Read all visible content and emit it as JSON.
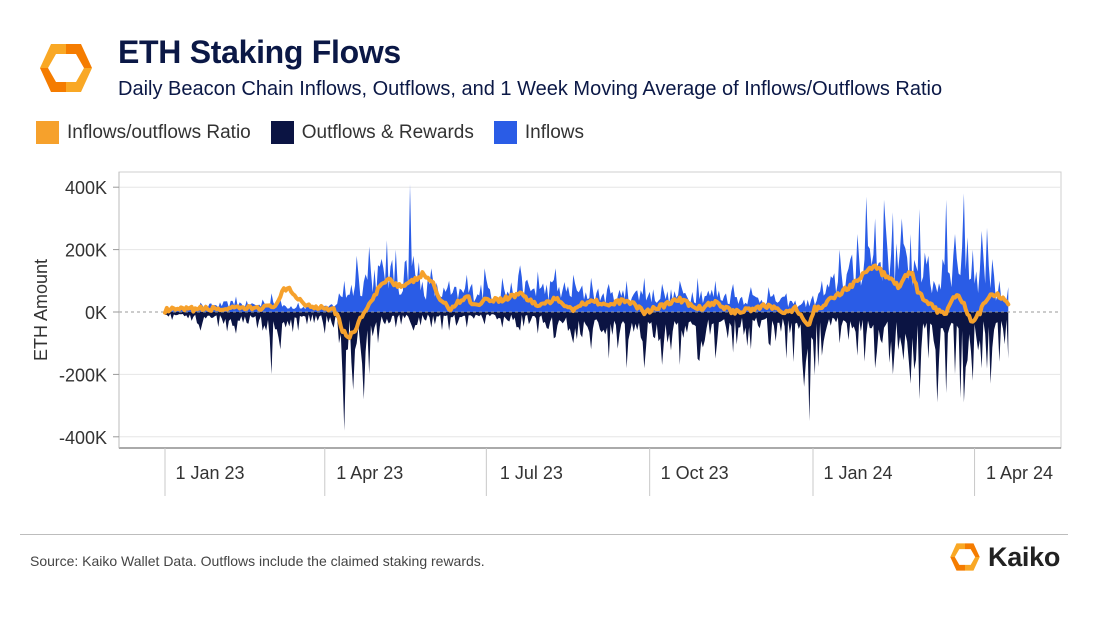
{
  "header": {
    "title": "ETH Staking Flows",
    "subtitle": "Daily Beacon Chain Inflows, Outflows, and 1 Week Moving Average of Inflows/Outflows Ratio"
  },
  "legend": [
    {
      "label": "Inflows/outflows Ratio",
      "color": "#f6a12c"
    },
    {
      "label": "Outflows & Rewards",
      "color": "#0b1443"
    },
    {
      "label": "Inflows",
      "color": "#2a5ce6"
    }
  ],
  "footer": {
    "source": "Source: Kaiko Wallet Data. Outflows include the claimed staking rewards.",
    "brand": "Kaiko"
  },
  "chart_data": {
    "type": "area",
    "title": "ETH Staking Flows",
    "xlabel": "",
    "ylabel": "ETH Amount",
    "ylim": [
      -450000,
      430000
    ],
    "yticks": [
      400000,
      200000,
      0,
      -200000,
      -400000
    ],
    "ytick_labels": [
      "400K",
      "200K",
      "0K",
      "-200K",
      "-400K"
    ],
    "xlim_days": [
      -5,
      485
    ],
    "xticks_days": [
      0,
      90,
      181,
      273,
      365,
      456
    ],
    "xtick_labels": [
      "1 Jan 23",
      "1 Apr 23",
      "1 Jul 23",
      "1 Oct 23",
      "1 Jan 24",
      "1 Apr 24"
    ],
    "grid": true,
    "series": [
      {
        "name": "Inflows",
        "color": "#2a5ce6",
        "x_days": [
          -5,
          20,
          40,
          55,
          60,
          65,
          75,
          80,
          90,
          98,
          101,
          108,
          115,
          125,
          130,
          135,
          138,
          140,
          143,
          150,
          160,
          170,
          180,
          190,
          200,
          210,
          220,
          230,
          240,
          250,
          260,
          270,
          280,
          290,
          300,
          310,
          320,
          330,
          340,
          350,
          360,
          370,
          380,
          390,
          395,
          400,
          405,
          410,
          415,
          420,
          425,
          430,
          438,
          440,
          445,
          450,
          455,
          460,
          463,
          466,
          470,
          475
        ],
        "peaks": [
          10000,
          30000,
          50000,
          40000,
          60000,
          40000,
          30000,
          30000,
          20000,
          60000,
          100000,
          180000,
          210000,
          230000,
          200000,
          160000,
          410000,
          180000,
          160000,
          140000,
          100000,
          120000,
          140000,
          110000,
          150000,
          130000,
          140000,
          120000,
          110000,
          90000,
          100000,
          110000,
          90000,
          100000,
          110000,
          100000,
          90000,
          80000,
          80000,
          60000,
          40000,
          100000,
          200000,
          250000,
          370000,
          300000,
          360000,
          320000,
          300000,
          250000,
          330000,
          180000,
          170000,
          360000,
          250000,
          380000,
          200000,
          260000,
          270000,
          170000,
          100000,
          80000
        ]
      },
      {
        "name": "Outflows & Rewards",
        "color": "#0b1443",
        "x_days": [
          -5,
          20,
          40,
          55,
          60,
          65,
          75,
          80,
          90,
          98,
          100,
          101,
          103,
          106,
          108,
          112,
          115,
          120,
          130,
          140,
          150,
          160,
          170,
          180,
          190,
          200,
          210,
          220,
          230,
          240,
          250,
          260,
          270,
          280,
          290,
          300,
          310,
          320,
          330,
          340,
          350,
          360,
          363,
          370,
          380,
          390,
          400,
          410,
          420,
          425,
          430,
          435,
          440,
          445,
          450,
          455,
          460,
          465,
          470,
          475
        ],
        "peaks": [
          15000,
          60000,
          70000,
          60000,
          200000,
          120000,
          60000,
          40000,
          70000,
          100000,
          200000,
          380000,
          120000,
          250000,
          100000,
          280000,
          200000,
          100000,
          50000,
          60000,
          50000,
          60000,
          50000,
          40000,
          50000,
          60000,
          70000,
          80000,
          100000,
          120000,
          150000,
          180000,
          180000,
          170000,
          170000,
          150000,
          150000,
          130000,
          120000,
          100000,
          150000,
          240000,
          350000,
          140000,
          100000,
          140000,
          180000,
          200000,
          230000,
          280000,
          150000,
          290000,
          260000,
          200000,
          290000,
          220000,
          180000,
          230000,
          160000,
          150000
        ]
      },
      {
        "name": "Inflows/outflows Ratio",
        "color": "#f6a12c",
        "x_days": [
          -5,
          0,
          20,
          40,
          55,
          60,
          63,
          67,
          70,
          80,
          90,
          95,
          98,
          100,
          103,
          106,
          110,
          115,
          120,
          125,
          130,
          135,
          140,
          145,
          148,
          150,
          155,
          160,
          165,
          170,
          175,
          180,
          190,
          200,
          210,
          220,
          230,
          240,
          250,
          260,
          270,
          280,
          290,
          300,
          310,
          320,
          330,
          340,
          350,
          355,
          360,
          363,
          366,
          370,
          380,
          390,
          395,
          400,
          405,
          410,
          413,
          418,
          421,
          424,
          428,
          432,
          436,
          440,
          444,
          447,
          450,
          453,
          456,
          459,
          462,
          466,
          470,
          475
        ],
        "values": [
          0,
          5000,
          10000,
          10000,
          15000,
          15000,
          30000,
          70000,
          70000,
          20000,
          15000,
          10000,
          -20000,
          -60000,
          -80000,
          -70000,
          -20000,
          20000,
          70000,
          110000,
          90000,
          80000,
          100000,
          120000,
          110000,
          100000,
          40000,
          10000,
          30000,
          50000,
          20000,
          40000,
          40000,
          60000,
          20000,
          40000,
          10000,
          40000,
          20000,
          40000,
          0,
          20000,
          40000,
          10000,
          30000,
          0,
          10000,
          20000,
          0,
          10000,
          -30000,
          -40000,
          10000,
          20000,
          60000,
          100000,
          130000,
          150000,
          120000,
          100000,
          80000,
          120000,
          120000,
          70000,
          30000,
          20000,
          0,
          0,
          40000,
          50000,
          30000,
          -20000,
          -30000,
          0,
          30000,
          60000,
          50000,
          30000
        ]
      }
    ]
  }
}
